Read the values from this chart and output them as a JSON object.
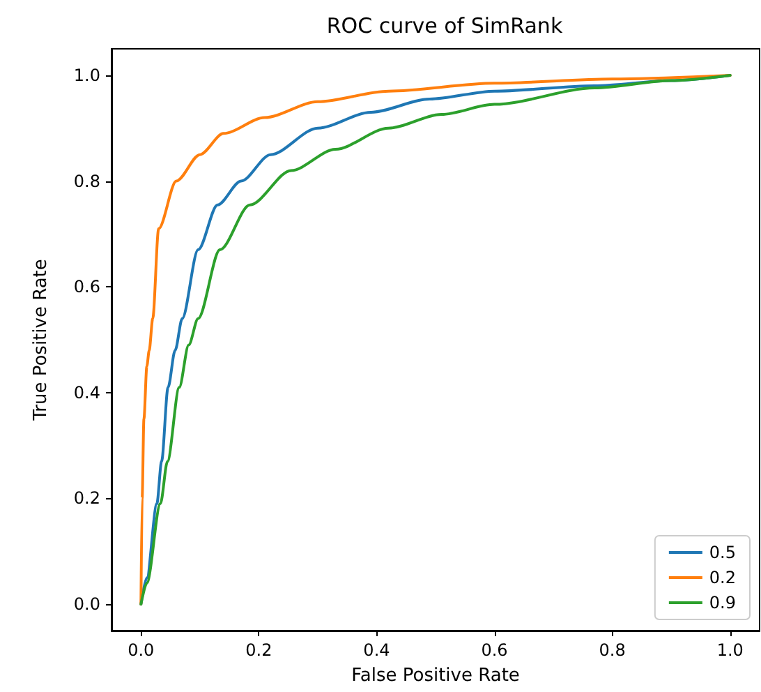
{
  "chart_data": {
    "type": "line",
    "title": "ROC curve of SimRank",
    "xlabel": "False Positive Rate",
    "ylabel": "True Positive Rate",
    "xlim": [
      -0.05,
      1.05
    ],
    "ylim": [
      -0.05,
      1.05
    ],
    "xticks": [
      {
        "value": 0,
        "label": "0.0"
      },
      {
        "value": 0.2,
        "label": "0.2"
      },
      {
        "value": 0.4,
        "label": "0.4"
      },
      {
        "value": 0.6,
        "label": "0.6"
      },
      {
        "value": 0.8,
        "label": "0.8"
      },
      {
        "value": 1,
        "label": "1.0"
      }
    ],
    "yticks": [
      {
        "value": 0,
        "label": "0.0"
      },
      {
        "value": 0.2,
        "label": "0.2"
      },
      {
        "value": 0.4,
        "label": "0.4"
      },
      {
        "value": 0.6,
        "label": "0.6"
      },
      {
        "value": 0.8,
        "label": "0.8"
      },
      {
        "value": 1,
        "label": "1.0"
      }
    ],
    "grid": false,
    "legend": "bottom right",
    "marker": "none",
    "line_style": "solid",
    "series": [
      {
        "name": "0.5",
        "color": "#1f77b4",
        "x": [
          0,
          0.01,
          0.027,
          0.035,
          0.046,
          0.058,
          0.07,
          0.097,
          0.13,
          0.17,
          0.22,
          0.3,
          0.39,
          0.49,
          0.6,
          0.77,
          0.9,
          1
        ],
        "values": [
          0,
          0.05,
          0.19,
          0.27,
          0.41,
          0.48,
          0.54,
          0.67,
          0.755,
          0.8,
          0.85,
          0.9,
          0.93,
          0.955,
          0.97,
          0.98,
          0.99,
          1
        ]
      },
      {
        "name": "0.2",
        "color": "#ff7f0e",
        "x": [
          0,
          0.002,
          0.005,
          0.01,
          0.014,
          0.02,
          0.03,
          0.06,
          0.1,
          0.14,
          0.21,
          0.3,
          0.42,
          0.6,
          0.8,
          1
        ],
        "values": [
          0,
          0.2,
          0.35,
          0.45,
          0.48,
          0.54,
          0.71,
          0.8,
          0.85,
          0.89,
          0.92,
          0.95,
          0.97,
          0.985,
          0.993,
          1
        ]
      },
      {
        "name": "0.9",
        "color": "#2ca02c",
        "x": [
          0,
          0.01,
          0.033,
          0.045,
          0.065,
          0.081,
          0.097,
          0.134,
          0.185,
          0.255,
          0.33,
          0.42,
          0.51,
          0.6,
          0.77,
          0.9,
          1
        ],
        "values": [
          0,
          0.04,
          0.19,
          0.27,
          0.41,
          0.49,
          0.54,
          0.67,
          0.755,
          0.82,
          0.86,
          0.9,
          0.926,
          0.945,
          0.976,
          0.99,
          1
        ]
      }
    ]
  }
}
